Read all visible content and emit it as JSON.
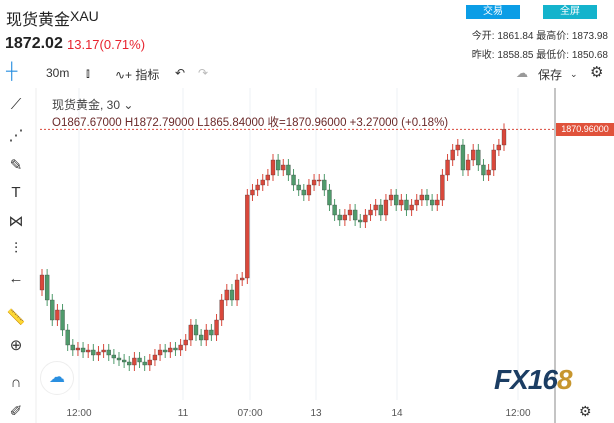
{
  "header": {
    "title": "现货黄金",
    "symbol": "XAU",
    "price": "1872.02",
    "change": "13.17(0.71%)",
    "trade_btn": "交易",
    "fullscreen_btn": "全屏",
    "open_label": "今开:",
    "open": "1861.84",
    "high_label": "最高价:",
    "high": "1873.98",
    "prev_label": "昨收:",
    "prev": "1858.85",
    "low_label": "最低价:",
    "low": "1850.68"
  },
  "toolbar": {
    "interval": "30m",
    "indicators": "指标",
    "save": "保存"
  },
  "legend": {
    "name": "现货黄金, 30",
    "ohlc": "O1867.67000  H1872.79000  L1865.84000  收=1870.96000  +3.27000 (+0.18%)"
  },
  "last_price_label": "1870.96000",
  "time_labels": [
    "12:00",
    "11",
    "07:00",
    "13",
    "14",
    "12:00"
  ],
  "colors": {
    "up": "#d9483b",
    "down": "#4f9a6b",
    "accent": "#0b9de6"
  },
  "logo": "FX168",
  "chart_data": {
    "type": "candlestick",
    "closes": [
      1856.4,
      1853.9,
      1851.9,
      1852.9,
      1850.9,
      1849.4,
      1848.9,
      1849.1,
      1848.7,
      1848.9,
      1848.4,
      1848.7,
      1848.9,
      1848.4,
      1848.1,
      1847.9,
      1847.7,
      1847.4,
      1848.1,
      1847.7,
      1847.4,
      1847.9,
      1848.4,
      1848.9,
      1848.7,
      1849.1,
      1848.9,
      1849.4,
      1849.9,
      1851.4,
      1850.4,
      1849.9,
      1850.9,
      1850.4,
      1851.9,
      1853.9,
      1854.9,
      1853.9,
      1855.9,
      1856.1,
      1864.4,
      1864.9,
      1865.4,
      1865.9,
      1866.4,
      1867.9,
      1866.9,
      1867.4,
      1866.4,
      1865.4,
      1864.9,
      1864.4,
      1865.4,
      1865.9,
      1865.9,
      1864.9,
      1863.4,
      1862.4,
      1861.9,
      1862.4,
      1862.9,
      1861.9,
      1861.7,
      1862.4,
      1862.9,
      1863.4,
      1862.4,
      1863.9,
      1864.4,
      1863.4,
      1863.9,
      1862.9,
      1863.4,
      1863.9,
      1864.4,
      1863.9,
      1863.4,
      1863.9,
      1866.4,
      1867.9,
      1868.9,
      1869.4,
      1866.9,
      1867.9,
      1868.9,
      1867.4,
      1866.4,
      1866.9,
      1868.9,
      1869.4,
      1870.96
    ]
  }
}
